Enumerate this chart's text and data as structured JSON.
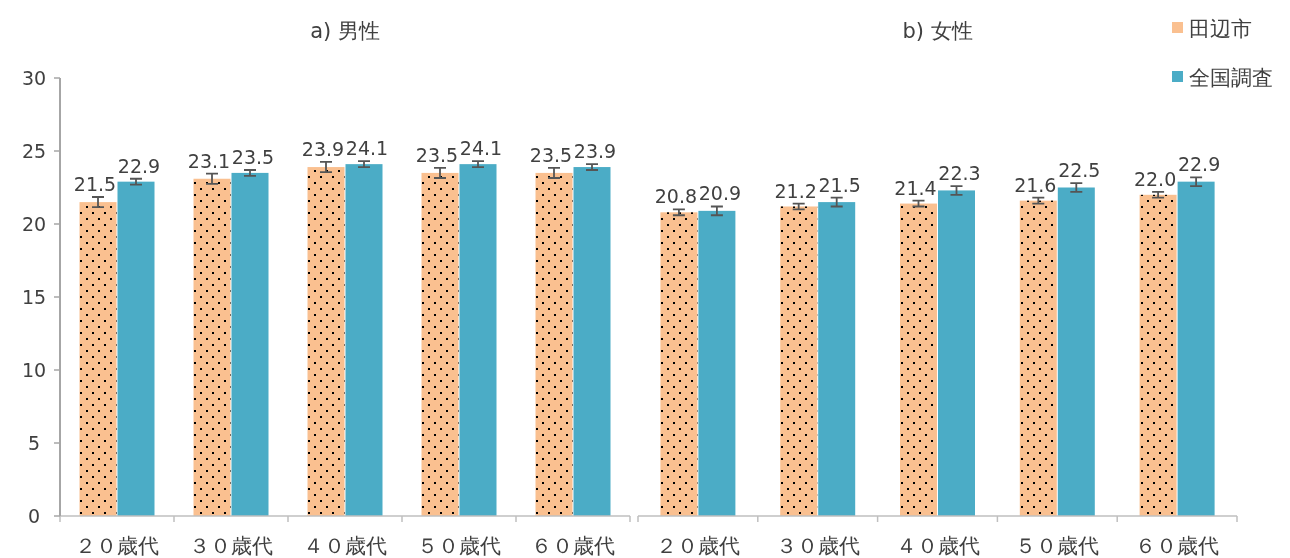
{
  "chart_data": [
    {
      "type": "bar",
      "title": "a) 男性",
      "categories": [
        "２０歳代",
        "３０歳代",
        "４０歳代",
        "５０歳代",
        "６０歳代"
      ],
      "ylim": [
        0,
        30
      ],
      "yticks": [
        0,
        5,
        10,
        15,
        20,
        25,
        30
      ],
      "grid": false,
      "legend": false,
      "series": [
        {
          "color": "#fac090",
          "values": [
            21.5,
            23.1,
            23.9,
            23.5,
            23.5
          ],
          "errors": [
            0.35,
            0.35,
            0.35,
            0.35,
            0.35
          ],
          "value_labels": [
            "21.5",
            "23.1",
            "23.9",
            "23.5",
            "23.5"
          ]
        },
        {
          "color": "#4bacc6",
          "values": [
            22.9,
            23.5,
            24.1,
            24.1,
            23.9
          ],
          "errors": [
            0.2,
            0.2,
            0.2,
            0.2,
            0.2
          ],
          "value_labels": [
            "22.9",
            "23.5",
            "24.1",
            "24.1",
            "23.9"
          ]
        }
      ]
    },
    {
      "type": "bar",
      "title": "b) 女性",
      "categories": [
        "２０歳代",
        "３０歳代",
        "４０歳代",
        "５０歳代",
        "６０歳代"
      ],
      "ylim": [
        0,
        30
      ],
      "tick_labels": "x",
      "grid": false,
      "legend": "top right",
      "series": [
        {
          "name": "田辺市",
          "color": "#fac090",
          "values": [
            20.8,
            21.2,
            21.4,
            21.6,
            22.0
          ],
          "errors": [
            0.2,
            0.2,
            0.2,
            0.2,
            0.2
          ],
          "value_labels": [
            "20.8",
            "21.2",
            "21.4",
            "21.6",
            "22.0"
          ]
        },
        {
          "name": "全国調査",
          "color": "#4bacc6",
          "values": [
            20.9,
            21.5,
            22.3,
            22.5,
            22.9
          ],
          "errors": [
            0.3,
            0.3,
            0.3,
            0.3,
            0.3
          ],
          "value_labels": [
            "20.9",
            "21.5",
            "22.3",
            "22.5",
            "22.9"
          ]
        }
      ]
    }
  ]
}
